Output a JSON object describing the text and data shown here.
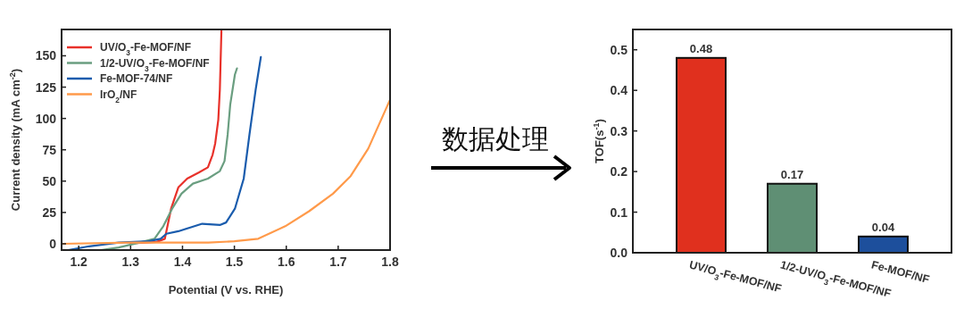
{
  "chart_data": [
    {
      "type": "line",
      "xlabel": "Potential (V vs. RHE)",
      "ylabel": "Current density (mA cm$^{-2}$)",
      "xlim": [
        1.167,
        1.8
      ],
      "ylim": [
        -5,
        171
      ],
      "xticks": [
        1.2,
        1.3,
        1.4,
        1.5,
        1.6,
        1.7,
        1.8
      ],
      "yticks": [
        0,
        25,
        50,
        75,
        100,
        125,
        150
      ],
      "legend": "top left",
      "grid": false,
      "marker": "none",
      "line_style": "solid",
      "series": [
        {
          "name": "UV/O$_{3}$-Fe-MOF/NF",
          "color": "#e8312a",
          "x": [
            1.3,
            1.33,
            1.35,
            1.366,
            1.378,
            1.392,
            1.409,
            1.432,
            1.449,
            1.458,
            1.463,
            1.469,
            1.472,
            1.475
          ],
          "values": [
            0.5,
            1,
            1.5,
            4,
            28,
            45,
            52,
            57,
            61,
            71,
            80,
            99,
            123,
            170
          ]
        },
        {
          "name": "1/2-UV/O$_{3}$-Fe-MOF/NF",
          "color": "#6a9e80",
          "x": [
            1.243,
            1.277,
            1.317,
            1.346,
            1.363,
            1.38,
            1.398,
            1.42,
            1.449,
            1.472,
            1.481,
            1.487,
            1.492,
            1.501,
            1.505
          ],
          "values": [
            -5,
            -3,
            1,
            4,
            14,
            28,
            40,
            48,
            52,
            58,
            66,
            87,
            111,
            135,
            140
          ]
        },
        {
          "name": "Fe-MOF-74/NF",
          "color": "#1a5cad",
          "x": [
            1.18,
            1.22,
            1.277,
            1.335,
            1.358,
            1.369,
            1.392,
            1.415,
            1.438,
            1.472,
            1.484,
            1.501,
            1.518,
            1.529,
            1.541,
            1.551
          ],
          "values": [
            -5,
            -2,
            1,
            2,
            4,
            8,
            10,
            13,
            16,
            15,
            17,
            28,
            52,
            87,
            123,
            149
          ]
        },
        {
          "name": "IrO$_{2}$/NF",
          "color": "#ff9a4a",
          "x": [
            1.167,
            1.3,
            1.4,
            1.45,
            1.5,
            1.546,
            1.598,
            1.644,
            1.69,
            1.724,
            1.758,
            1.8
          ],
          "values": [
            0,
            1,
            1,
            1,
            2,
            4,
            14,
            26,
            40,
            54,
            76,
            115
          ]
        }
      ]
    },
    {
      "type": "other",
      "annotations": [
        "数据处理"
      ]
    },
    {
      "type": "bar",
      "ylabel": "TOF(s$^{-1}$)",
      "categories": [
        "UV/O$_{3}$-Fe-MOF/NF",
        "1/2-UV/O$_{3}$-Fe-MOF/NF",
        "Fe-MOF/NF"
      ],
      "values": [
        0.48,
        0.17,
        0.04
      ],
      "colors": [
        "#e0301e",
        "#5f8f74",
        "#1d4f9c"
      ],
      "ylim": [
        0,
        0.55
      ],
      "yticks": [
        {
          "value": 0,
          "label": "0.0"
        },
        0.1,
        0.2,
        0.3,
        0.4,
        0.5
      ],
      "data_labels": true
    }
  ]
}
